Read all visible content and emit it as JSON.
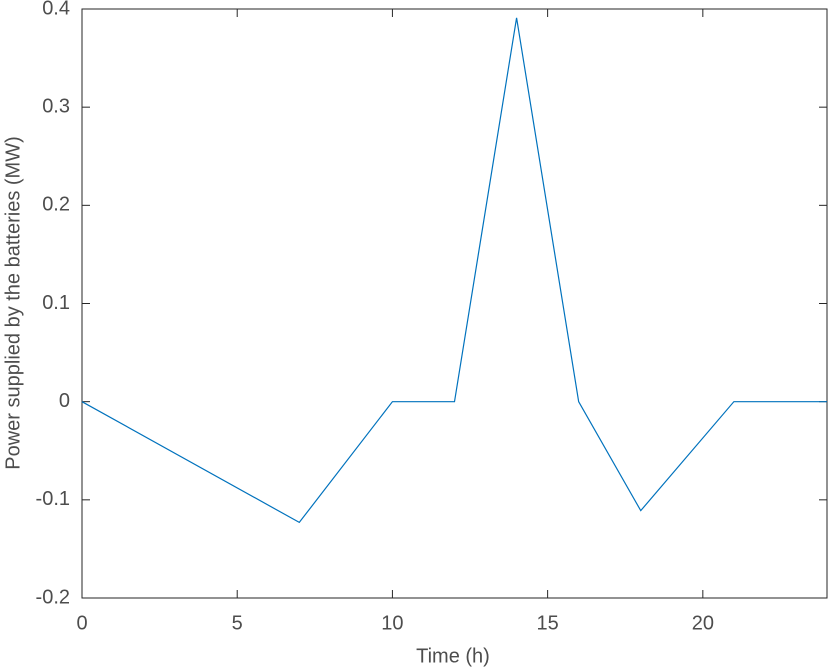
{
  "chart_data": {
    "type": "line",
    "xlabel": "Time (h)",
    "ylabel": "Power supplied by the batteries (MW)",
    "x": [
      0,
      7,
      10,
      12,
      14,
      16,
      18,
      21,
      24
    ],
    "values": [
      0,
      -0.123,
      0,
      0,
      0.391,
      0,
      -0.111,
      0,
      0
    ],
    "color": "#0072bd",
    "xlim": [
      0,
      24
    ],
    "xticks": [
      0,
      5,
      10,
      15,
      20
    ],
    "ylim": [
      -0.2,
      0.4
    ],
    "yticks": [
      -0.2,
      -0.1,
      0,
      0.1,
      0.2,
      0.3,
      0.4
    ]
  }
}
